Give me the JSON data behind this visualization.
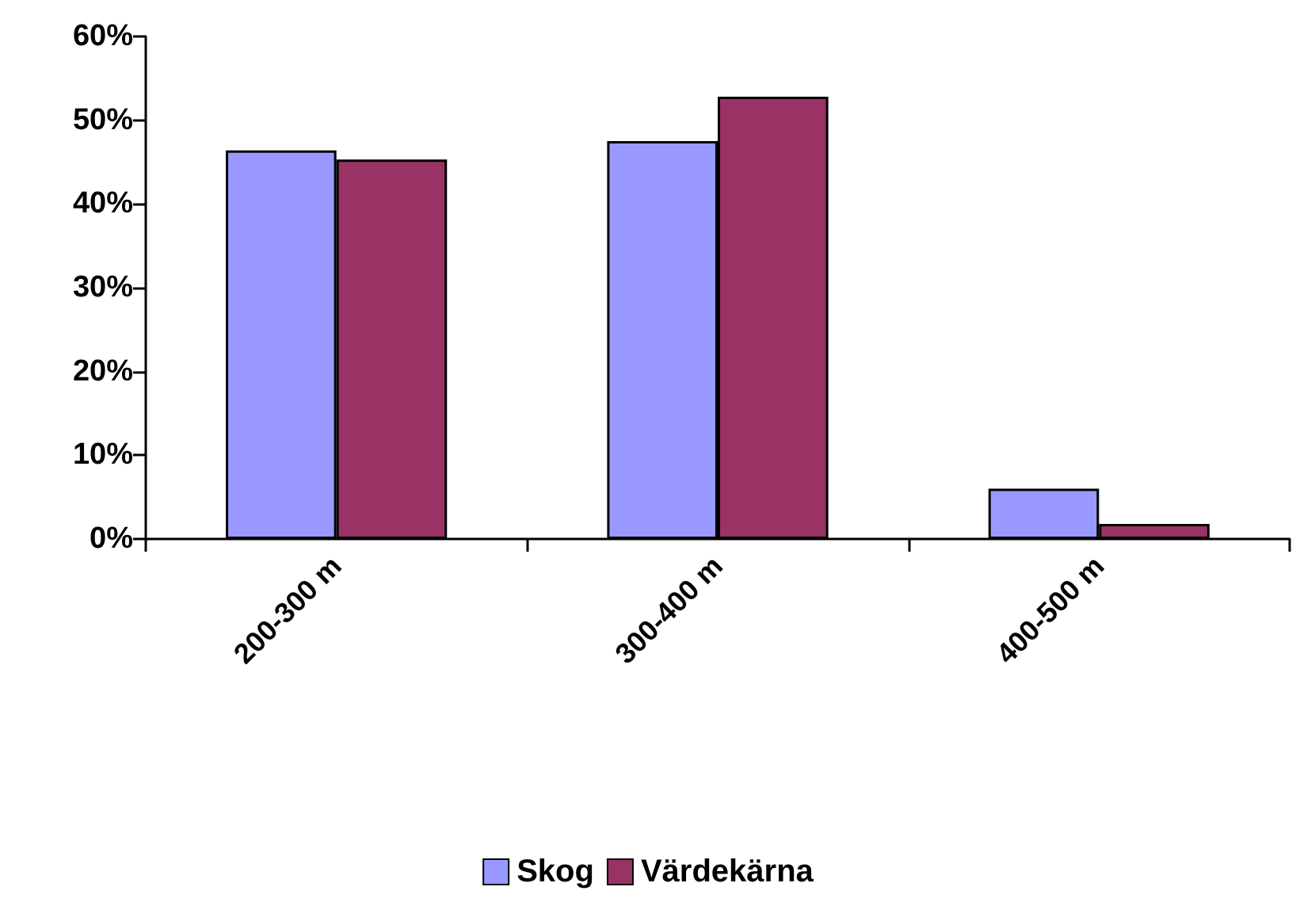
{
  "chart_data": {
    "type": "bar",
    "categories": [
      "200-300 m",
      "300-400 m",
      "400-500 m"
    ],
    "series": [
      {
        "name": "Skog",
        "color": "#9999ff",
        "values": [
          46.4,
          47.5,
          6.0
        ]
      },
      {
        "name": "Värdekärna",
        "color": "#993366",
        "values": [
          45.3,
          52.8,
          1.8
        ]
      }
    ],
    "ylim": [
      0,
      60
    ],
    "yticks": [
      {
        "value": 0,
        "label": "0%"
      },
      {
        "value": 10,
        "label": "10%"
      },
      {
        "value": 20,
        "label": "20%"
      },
      {
        "value": 30,
        "label": "30%"
      },
      {
        "value": 40,
        "label": "40%"
      },
      {
        "value": 50,
        "label": "50%"
      },
      {
        "value": 60,
        "label": "60%"
      }
    ],
    "legend": "bottom"
  }
}
